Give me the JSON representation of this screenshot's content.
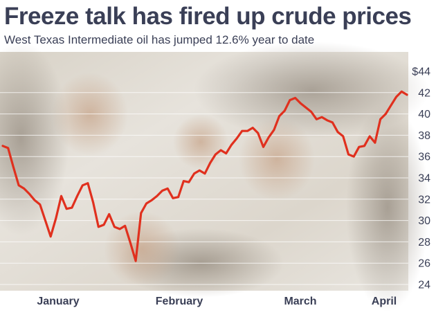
{
  "chart_data": {
    "type": "line",
    "title": "Freeze talk has fired up crude prices",
    "subtitle": "West Texas Intermediate oil has jumped 12.6% year to date",
    "xlabel": "",
    "ylabel": "",
    "y_ticks": [
      "$44",
      "42",
      "40",
      "38",
      "36",
      "34",
      "32",
      "30",
      "28",
      "26",
      "24"
    ],
    "ylim": [
      24,
      44
    ],
    "x_month_labels": [
      "January",
      "February",
      "March",
      "April"
    ],
    "grid": true,
    "series": [
      {
        "values": [
          37.0,
          36.8,
          35.0,
          33.3,
          33.0,
          32.5,
          31.9,
          31.5,
          30.0,
          28.5,
          30.2,
          32.3,
          31.1,
          31.2,
          32.3,
          33.3,
          33.5,
          31.7,
          29.4,
          29.6,
          30.6,
          29.4,
          29.2,
          29.5,
          27.9,
          26.2,
          30.7,
          31.6,
          31.9,
          32.3,
          32.8,
          33.0,
          32.1,
          32.2,
          33.7,
          33.6,
          34.4,
          34.7,
          34.4,
          35.4,
          36.2,
          36.6,
          36.3,
          37.1,
          37.7,
          38.4,
          38.4,
          38.7,
          38.2,
          36.9,
          37.8,
          38.5,
          39.8,
          40.3,
          41.3,
          41.5,
          41.0,
          40.6,
          40.2,
          39.5,
          39.7,
          39.4,
          39.2,
          38.3,
          37.9,
          36.2,
          36.0,
          36.9,
          37.0,
          37.9,
          37.3,
          39.5,
          40.0,
          40.8,
          41.6,
          42.1,
          41.8
        ]
      }
    ],
    "colors": {
      "line": "#e0301e",
      "text": "#3a3f56",
      "grid": "#ffffff",
      "photo_tint": "#e6e3dc"
    }
  }
}
